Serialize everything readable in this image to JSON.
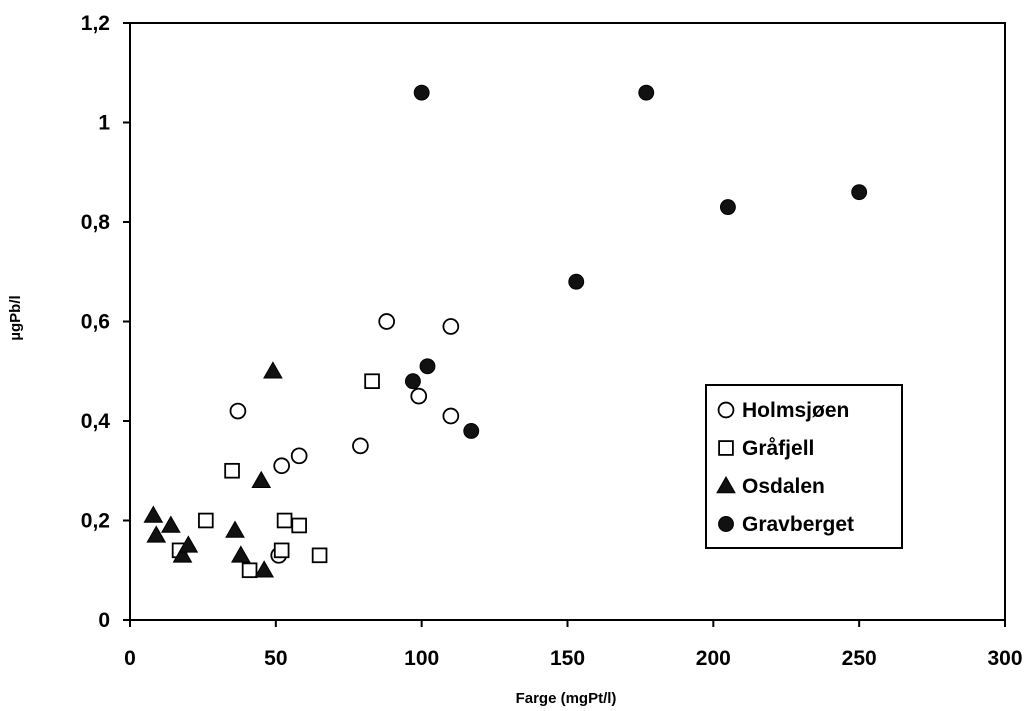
{
  "chart_data": {
    "type": "scatter",
    "title": "",
    "xlabel": "Farge (mgPt/l)",
    "ylabel": "µgPb/l",
    "xlim": [
      0,
      300
    ],
    "ylim": [
      0,
      1.2
    ],
    "x_ticks": [
      "0",
      "50",
      "100",
      "150",
      "200",
      "250",
      "300"
    ],
    "y_ticks": [
      "0",
      "0,2",
      "0,4",
      "0,6",
      "0,8",
      "1",
      "1,2"
    ],
    "grid": false,
    "legend_position": "right",
    "series": [
      {
        "name": "Holmsjøen",
        "marker": "circle-open",
        "color": "#000000",
        "points": [
          [
            37,
            0.42
          ],
          [
            52,
            0.31
          ],
          [
            58,
            0.33
          ],
          [
            51,
            0.13
          ],
          [
            79,
            0.35
          ],
          [
            88,
            0.6
          ],
          [
            99,
            0.45
          ],
          [
            110,
            0.59
          ],
          [
            110,
            0.41
          ]
        ]
      },
      {
        "name": "Gråfjell",
        "marker": "square-open",
        "color": "#000000",
        "points": [
          [
            17,
            0.14
          ],
          [
            26,
            0.2
          ],
          [
            35,
            0.3
          ],
          [
            41,
            0.1
          ],
          [
            52,
            0.14
          ],
          [
            53,
            0.2
          ],
          [
            58,
            0.19
          ],
          [
            65,
            0.13
          ],
          [
            83,
            0.48
          ]
        ]
      },
      {
        "name": "Osdalen",
        "marker": "triangle-filled",
        "color": "#000000",
        "points": [
          [
            8,
            0.21
          ],
          [
            9,
            0.17
          ],
          [
            14,
            0.19
          ],
          [
            18,
            0.13
          ],
          [
            20,
            0.15
          ],
          [
            36,
            0.18
          ],
          [
            38,
            0.13
          ],
          [
            45,
            0.28
          ],
          [
            46,
            0.1
          ],
          [
            49,
            0.5
          ]
        ]
      },
      {
        "name": "Gravberget",
        "marker": "circle-filled",
        "color": "#000000",
        "points": [
          [
            97,
            0.48
          ],
          [
            100,
            1.06
          ],
          [
            102,
            0.51
          ],
          [
            117,
            0.38
          ],
          [
            153,
            0.68
          ],
          [
            177,
            1.06
          ],
          [
            205,
            0.83
          ],
          [
            250,
            0.86
          ]
        ]
      }
    ]
  }
}
